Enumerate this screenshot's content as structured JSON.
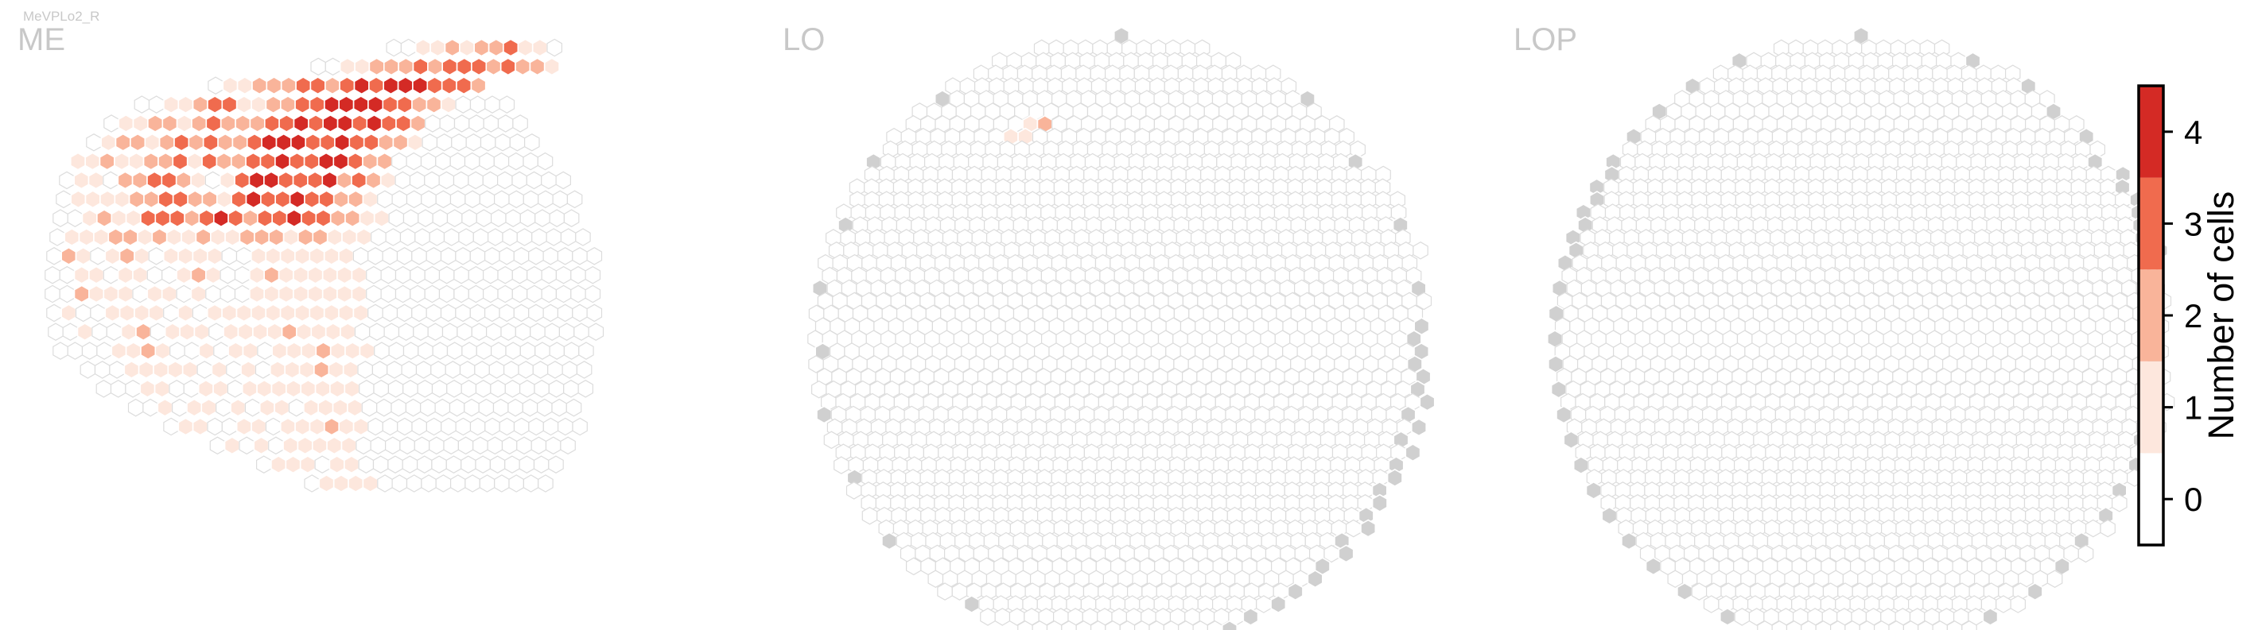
{
  "cell_type": "MeVPLo2_R",
  "chart_data": {
    "type": "heatmap",
    "shape": "hexagonal column grid",
    "panels": [
      {
        "name": "ME",
        "value_range": [
          0,
          4
        ],
        "filled_rows_top_to_bottom": [
          [
            null,
            null,
            null,
            null,
            null,
            null,
            null,
            null,
            null,
            0,
            0,
            1,
            1,
            2,
            1,
            2,
            2,
            3,
            1,
            1,
            0
          ],
          [
            null,
            null,
            null,
            null,
            null,
            null,
            0,
            0,
            1,
            1,
            2,
            2,
            2,
            3,
            2,
            3,
            3,
            3,
            2,
            3,
            2,
            2,
            1
          ],
          [
            null,
            null,
            null,
            0,
            1,
            1,
            2,
            2,
            2,
            3,
            3,
            2,
            3,
            4,
            3,
            4,
            4,
            4,
            3,
            3,
            3,
            2
          ],
          [
            null,
            0,
            0,
            1,
            1,
            2,
            3,
            3,
            1,
            1,
            2,
            2,
            3,
            3,
            4,
            4,
            4,
            4,
            3,
            3,
            2,
            2,
            1
          ],
          [
            0,
            1,
            1,
            2,
            2,
            1,
            2,
            3,
            2,
            2,
            2,
            3,
            3,
            4,
            3,
            4,
            4,
            3,
            4,
            3,
            3,
            2
          ],
          [
            0,
            1,
            2,
            2,
            1,
            2,
            3,
            2,
            3,
            2,
            2,
            3,
            4,
            4,
            4,
            3,
            3,
            4,
            3,
            3,
            2,
            2,
            1
          ],
          [
            1,
            1,
            2,
            1,
            1,
            2,
            2,
            3,
            1,
            3,
            2,
            2,
            3,
            3,
            4,
            3,
            3,
            4,
            4,
            3,
            2,
            2
          ],
          [
            0,
            1,
            1,
            0,
            2,
            2,
            3,
            3,
            2,
            1,
            0,
            1,
            3,
            4,
            4,
            3,
            3,
            3,
            4,
            2,
            3,
            2,
            1
          ],
          [
            0,
            1,
            1,
            1,
            1,
            2,
            2,
            3,
            3,
            2,
            2,
            1,
            3,
            4,
            3,
            3,
            4,
            3,
            3,
            2,
            2,
            1
          ],
          [
            0,
            0,
            1,
            2,
            1,
            1,
            3,
            3,
            3,
            2,
            3,
            4,
            3,
            2,
            3,
            3,
            4,
            3,
            3,
            2,
            2,
            1,
            1
          ],
          [
            0,
            1,
            1,
            1,
            2,
            2,
            1,
            2,
            1,
            1,
            2,
            1,
            1,
            2,
            2,
            2,
            1,
            2,
            2,
            1,
            1,
            1
          ],
          [
            0,
            2,
            1,
            0,
            1,
            2,
            1,
            0,
            1,
            1,
            1,
            1,
            0,
            0,
            1,
            1,
            1,
            1,
            1,
            1,
            1,
            0,
            0
          ],
          [
            0,
            0,
            1,
            1,
            0,
            1,
            1,
            0,
            0,
            1,
            2,
            1,
            0,
            0,
            1,
            2,
            1,
            1,
            1,
            1,
            1,
            1
          ],
          [
            0,
            0,
            2,
            1,
            1,
            1,
            0,
            1,
            1,
            0,
            1,
            0,
            0,
            0,
            1,
            1,
            1,
            1,
            1,
            1,
            1,
            1,
            0
          ],
          [
            0,
            1,
            0,
            0,
            1,
            1,
            1,
            1,
            0,
            1,
            0,
            1,
            1,
            1,
            1,
            1,
            1,
            1,
            1,
            1,
            1,
            1
          ],
          [
            0,
            0,
            1,
            0,
            0,
            1,
            2,
            0,
            1,
            1,
            1,
            0,
            1,
            1,
            1,
            1,
            2,
            1,
            1,
            1,
            1,
            0,
            0
          ],
          [
            0,
            0,
            0,
            0,
            1,
            1,
            2,
            1,
            0,
            0,
            1,
            0,
            1,
            1,
            0,
            1,
            1,
            1,
            2,
            1,
            1,
            1
          ],
          [
            null,
            0,
            0,
            0,
            1,
            1,
            1,
            1,
            1,
            0,
            1,
            0,
            1,
            0,
            1,
            1,
            1,
            2,
            1,
            1,
            0,
            0
          ],
          [
            null,
            0,
            0,
            0,
            1,
            1,
            0,
            0,
            1,
            1,
            0,
            1,
            1,
            1,
            1,
            1,
            1,
            1,
            1,
            0,
            0
          ],
          [
            null,
            null,
            0,
            0,
            1,
            0,
            1,
            1,
            0,
            1,
            0,
            1,
            1,
            0,
            1,
            1,
            1,
            1,
            0,
            0
          ],
          [
            null,
            null,
            null,
            0,
            1,
            1,
            0,
            0,
            1,
            1,
            0,
            1,
            1,
            1,
            2,
            1,
            1,
            0
          ],
          [
            null,
            null,
            null,
            null,
            0,
            1,
            0,
            1,
            0,
            1,
            1,
            1,
            1,
            1,
            0,
            0
          ],
          [
            null,
            null,
            null,
            null,
            null,
            0,
            1,
            1,
            1,
            0,
            1,
            1,
            0,
            0
          ],
          [
            null,
            null,
            null,
            null,
            null,
            null,
            0,
            1,
            1,
            1,
            1,
            0
          ]
        ]
      },
      {
        "name": "LO",
        "value_range": [
          0,
          4
        ],
        "nonzero_cells": [
          {
            "value": 1,
            "location": "upper-left quadrant, row 5"
          },
          {
            "value": 2,
            "location": "upper-left quadrant, row 5"
          },
          {
            "value": 1,
            "location": "upper-left quadrant, row 6"
          },
          {
            "value": 1,
            "location": "upper-left quadrant, row 6"
          }
        ],
        "other_cells": "0; grey cells mark columns with no data along the rim"
      },
      {
        "name": "LOP",
        "value_range": [
          0,
          4
        ],
        "nonzero_cells": [],
        "other_cells": "0; grey cells mark columns with no data along the rim"
      }
    ],
    "colorbar": {
      "title": "Number of cells",
      "ticks": [
        "0",
        "1",
        "2",
        "3",
        "4"
      ],
      "colors": [
        "#ffffff",
        "#fde7dd",
        "#f9b49a",
        "#f06b4e",
        "#d42a25"
      ],
      "no_data_color": "#d0d0d0",
      "empty_stroke": "#dcdcdc",
      "placement": "right"
    }
  }
}
